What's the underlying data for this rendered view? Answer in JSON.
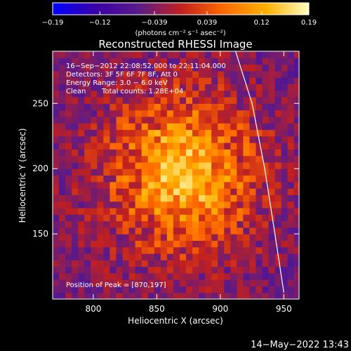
{
  "chart_data": {
    "type": "heatmap",
    "title": "Reconstructed RHESSI Image",
    "xlabel": "Heliocentric X (arcsec)",
    "ylabel": "Heliocentric Y (arcsec)",
    "xlim": [
      768,
      962
    ],
    "ylim": [
      100,
      290
    ],
    "x_ticks": [
      {
        "value": 800,
        "label": "800"
      },
      {
        "value": 850,
        "label": "850"
      },
      {
        "value": 900,
        "label": "900"
      },
      {
        "value": 950,
        "label": "950"
      }
    ],
    "y_ticks": [
      {
        "value": 150,
        "label": "150"
      },
      {
        "value": 200,
        "label": "200"
      },
      {
        "value": 250,
        "label": "250"
      }
    ],
    "colorbar": {
      "min": -0.19,
      "max": 0.19,
      "units": "(photons cm⁻² s⁻¹ asec⁻²)",
      "ticks": [
        {
          "value": -0.19,
          "label": "−0.19"
        },
        {
          "value": -0.12,
          "label": "−0.12"
        },
        {
          "value": -0.039,
          "label": "−0.039"
        },
        {
          "value": 0.039,
          "label": "0.039"
        },
        {
          "value": 0.12,
          "label": "0.12"
        },
        {
          "value": 0.19,
          "label": "0.19"
        }
      ],
      "colors": [
        "#0000ff",
        "#3a00a8",
        "#5a1a8a",
        "#c02020",
        "#ff6a00",
        "#ffb000",
        "#ffffc0"
      ]
    },
    "annotations": [
      "16−Sep−2012 22:08:52.000 to 22:11:04.000",
      "Detectors: 3F 5F 6F 7F 8F, Att 0",
      "Energy Range: 3.0 − 6.0 keV",
      "Clean",
      "Total counts: 1.28E+04"
    ],
    "peak_label": "Position of Peak = [870,197]",
    "peak": {
      "x": 870,
      "y": 197,
      "value": 0.19
    },
    "source_sigma": {
      "x": 16,
      "y": 21
    },
    "limb_points": [
      [
        912,
        290
      ],
      [
        925,
        250
      ],
      [
        935,
        200
      ],
      [
        943,
        150
      ],
      [
        950,
        105
      ]
    ],
    "background_level": -0.05,
    "grid": false
  },
  "footer_timestamp": "14−May−2022 13:43"
}
